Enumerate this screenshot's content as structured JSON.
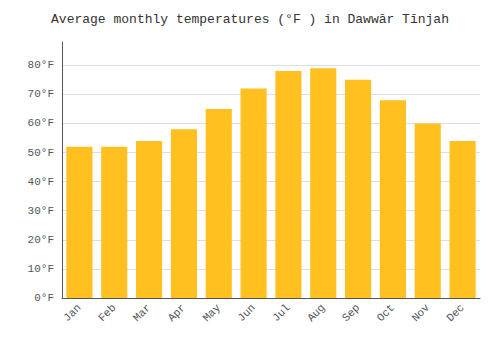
{
  "chart_data": {
    "type": "bar",
    "title": "Average monthly temperatures (°F ) in Dawwār Tīnjah",
    "categories": [
      "Jan",
      "Feb",
      "Mar",
      "Apr",
      "May",
      "Jun",
      "Jul",
      "Aug",
      "Sep",
      "Oct",
      "Nov",
      "Dec"
    ],
    "values": [
      52,
      52,
      54,
      58,
      65,
      72,
      78,
      79,
      75,
      68,
      60,
      54
    ],
    "color": "#FFC020",
    "ylim": [
      0,
      88
    ],
    "yticks": [
      {
        "value": 0,
        "label": "0°F"
      },
      {
        "value": 10,
        "label": "10°F"
      },
      {
        "value": 20,
        "label": "20°F"
      },
      {
        "value": 30,
        "label": "30°F"
      },
      {
        "value": 40,
        "label": "40°F"
      },
      {
        "value": 50,
        "label": "50°F"
      },
      {
        "value": 60,
        "label": "60°F"
      },
      {
        "value": 70,
        "label": "70°F"
      },
      {
        "value": 80,
        "label": "80°F"
      }
    ],
    "grid": true
  }
}
